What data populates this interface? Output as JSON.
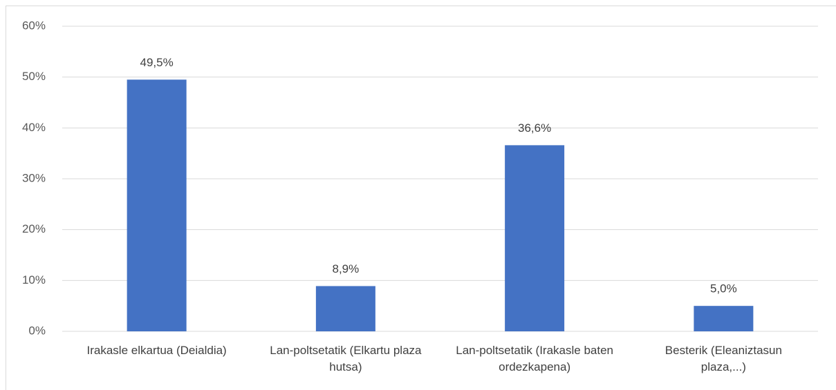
{
  "chart_data": {
    "type": "bar",
    "categories": [
      "Irakasle elkartua (Deialdia)",
      "Lan-poltsetatik (Elkartu plaza hutsa)",
      "Lan-poltsetatik (Irakasle baten ordezkapena)",
      "Besterik (Eleaniztasun plaza,...)"
    ],
    "values": [
      49.5,
      8.9,
      36.6,
      5.0
    ],
    "value_labels": [
      "49,5%",
      "8,9%",
      "36,6%",
      "5,0%"
    ],
    "color": "#4472c4",
    "ylim": [
      0,
      60
    ],
    "yticks": [
      {
        "value": 0,
        "label": "0%"
      },
      {
        "value": 10,
        "label": "10%"
      },
      {
        "value": 20,
        "label": "20%"
      },
      {
        "value": 30,
        "label": "30%"
      },
      {
        "value": 40,
        "label": "40%"
      },
      {
        "value": 50,
        "label": "50%"
      },
      {
        "value": 60,
        "label": "60%"
      }
    ],
    "grid": true
  }
}
